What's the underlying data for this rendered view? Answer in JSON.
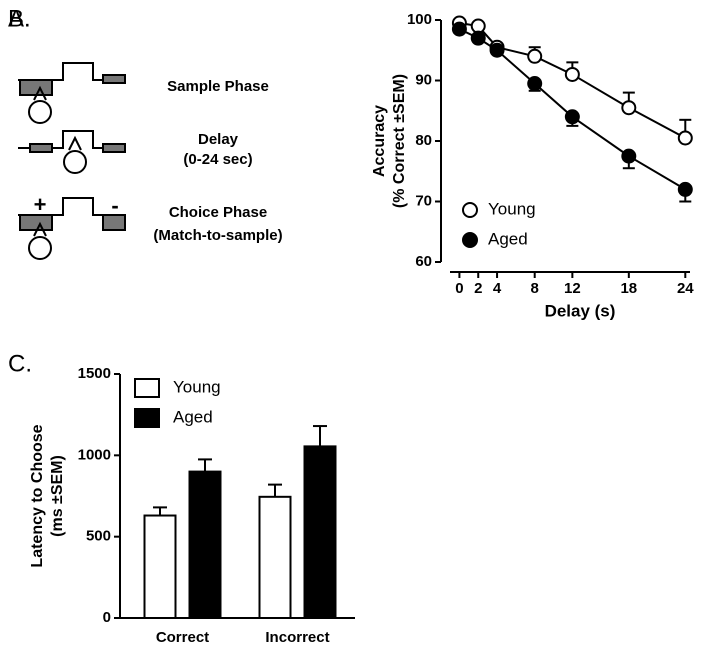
{
  "diagram": {
    "label": "A.",
    "plus": "+",
    "minus": "-",
    "phases": [
      {
        "lines": [
          "Sample Phase"
        ]
      },
      {
        "lines": [
          "Delay",
          "(0-24 sec)"
        ]
      },
      {
        "lines": [
          "Choice Phase",
          "(Match-to-sample)"
        ]
      }
    ]
  },
  "chart_data": [
    {
      "type": "line",
      "panel_label": "B.",
      "xlabel": "Delay (s)",
      "ylabel": [
        "Accuracy",
        "(% Correct ±SEM)"
      ],
      "x": [
        0,
        2,
        4,
        8,
        12,
        18,
        24
      ],
      "xlim": [
        -1,
        24.5
      ],
      "xticks": [
        0,
        2,
        4,
        8,
        12,
        18,
        24
      ],
      "ylim": [
        60,
        100
      ],
      "yticks": [
        60,
        70,
        80,
        90,
        100
      ],
      "legend": "lower left",
      "series": [
        {
          "name": "Young",
          "color": "#ffffff",
          "values": [
            99.5,
            99,
            95.5,
            94,
            91,
            85.5,
            80.5
          ],
          "errors": [
            0.3,
            0.3,
            0.5,
            1.5,
            2,
            2.5,
            3
          ],
          "error_side": "up"
        },
        {
          "name": "Aged",
          "color": "#000000",
          "values": [
            98.5,
            97,
            95,
            89.5,
            84,
            77.5,
            72
          ],
          "errors": [
            0.5,
            0.5,
            0.5,
            1.2,
            1.5,
            2,
            2
          ],
          "error_side": "down"
        }
      ]
    },
    {
      "type": "bar",
      "panel_label": "C.",
      "ylabel": [
        "Latency to Choose",
        "(ms ±SEM)"
      ],
      "categories": [
        "Correct",
        "Incorrect"
      ],
      "ylim": [
        0,
        1500
      ],
      "yticks": [
        0,
        500,
        1000,
        1500
      ],
      "legend": "upper left",
      "series": [
        {
          "name": "Young",
          "color": "#ffffff",
          "values": [
            630,
            745
          ],
          "errors": [
            50,
            75
          ],
          "error_side": "up"
        },
        {
          "name": "Aged",
          "color": "#000000",
          "values": [
            900,
            1055
          ],
          "errors": [
            75,
            125
          ],
          "error_side": "up"
        }
      ]
    }
  ]
}
